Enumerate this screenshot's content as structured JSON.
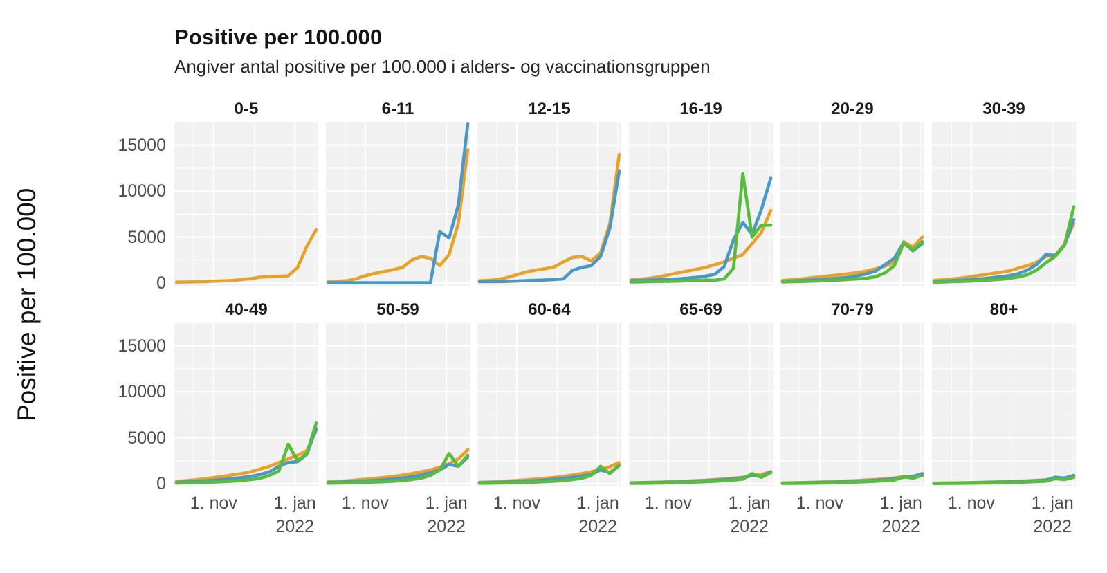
{
  "header": {
    "title": "Positive per 100.000",
    "subtitle": "Angiver antal positive per 100.000 i alders- og vaccinationsgruppen"
  },
  "y_axis_label": "Positive per 100.000",
  "chart_data": {
    "type": "line",
    "title": "Positive per 100.000",
    "subtitle": "Angiver antal positive per 100.000 i alders- og vaccinationsgruppen",
    "ylabel": "Positive per 100.000",
    "xlabel": "",
    "x_description": "weekly observations, index 0-15 (early October 2021 to mid January 2022)",
    "facet_layout": {
      "rows": 2,
      "cols": 6,
      "legend": "none",
      "grid": true
    },
    "panel_bg": "#f1f1f1",
    "grid_color": "#ffffff",
    "ylim": [
      0,
      17500
    ],
    "yticks": [
      0,
      5000,
      10000,
      15000
    ],
    "xticks": [
      {
        "lines": [
          "1. nov"
        ],
        "index": 4
      },
      {
        "lines": [
          "1. jan",
          "2022"
        ],
        "index": 12.71
      }
    ],
    "xminor": [
      1.86,
      8.36,
      14.86
    ],
    "yminor": [
      2500,
      7500,
      12500,
      17500
    ],
    "series_colors": {
      "orange": "#e8a229",
      "blue": "#4a98c8",
      "green": "#57bd3a"
    },
    "panels": [
      {
        "title": "0-5",
        "series": [
          {
            "name": "orange",
            "values": [
              100,
              110,
              130,
              150,
              200,
              240,
              280,
              380,
              480,
              650,
              700,
              720,
              800,
              1700,
              4000,
              5800
            ]
          }
        ]
      },
      {
        "title": "6-11",
        "series": [
          {
            "name": "orange",
            "values": [
              150,
              180,
              250,
              450,
              800,
              1050,
              1250,
              1450,
              1700,
              2500,
              2900,
              2700,
              1900,
              3100,
              6500,
              14500
            ]
          },
          {
            "name": "blue",
            "values": [
              30,
              30,
              30,
              30,
              30,
              30,
              30,
              30,
              30,
              30,
              30,
              40,
              5600,
              4900,
              8500,
              17300
            ]
          }
        ]
      },
      {
        "title": "12-15",
        "series": [
          {
            "name": "orange",
            "values": [
              250,
              300,
              400,
              600,
              900,
              1200,
              1400,
              1550,
              1750,
              2300,
              2800,
              2900,
              2400,
              3300,
              6500,
              14000
            ]
          },
          {
            "name": "blue",
            "values": [
              150,
              150,
              160,
              180,
              220,
              260,
              300,
              330,
              380,
              450,
              1400,
              1700,
              1900,
              2900,
              6000,
              12200
            ]
          }
        ]
      },
      {
        "title": "16-19",
        "series": [
          {
            "name": "orange",
            "values": [
              350,
              420,
              520,
              680,
              880,
              1100,
              1300,
              1500,
              1700,
              2000,
              2300,
              2700,
              3100,
              4300,
              5500,
              7900
            ]
          },
          {
            "name": "blue",
            "values": [
              250,
              280,
              320,
              360,
              400,
              450,
              520,
              620,
              750,
              950,
              1800,
              4700,
              6600,
              5300,
              8000,
              11400
            ]
          },
          {
            "name": "green",
            "values": [
              120,
              130,
              150,
              170,
              190,
              210,
              240,
              270,
              320,
              300,
              450,
              1600,
              11900,
              5000,
              6300,
              6300
            ]
          }
        ]
      },
      {
        "title": "20-29",
        "series": [
          {
            "name": "orange",
            "values": [
              280,
              360,
              450,
              560,
              670,
              780,
              890,
              1000,
              1120,
              1300,
              1550,
              1850,
              2250,
              4500,
              3900,
              5000
            ]
          },
          {
            "name": "blue",
            "values": [
              180,
              220,
              270,
              320,
              380,
              440,
              520,
              620,
              780,
              1000,
              1300,
              2000,
              2700,
              4400,
              3500,
              4300
            ]
          },
          {
            "name": "green",
            "values": [
              120,
              140,
              170,
              200,
              240,
              280,
              330,
              390,
              450,
              520,
              700,
              1100,
              1900,
              4300,
              3600,
              4500
            ]
          }
        ]
      },
      {
        "title": "30-39",
        "series": [
          {
            "name": "orange",
            "values": [
              280,
              360,
              450,
              560,
              700,
              850,
              1000,
              1150,
              1300,
              1600,
              1900,
              2250,
              2900,
              3000,
              4200,
              6500
            ]
          },
          {
            "name": "blue",
            "values": [
              160,
              200,
              250,
              310,
              370,
              450,
              550,
              660,
              800,
              1000,
              1400,
              2000,
              3100,
              3000,
              4100,
              6900
            ]
          },
          {
            "name": "green",
            "values": [
              100,
              120,
              150,
              180,
              220,
              270,
              330,
              400,
              500,
              650,
              900,
              1400,
              2200,
              2900,
              4100,
              8300
            ]
          }
        ]
      },
      {
        "title": "40-49",
        "series": [
          {
            "name": "orange",
            "values": [
              250,
              320,
              420,
              520,
              660,
              800,
              950,
              1100,
              1300,
              1600,
              1900,
              2300,
              2700,
              3100,
              3600,
              5800
            ]
          },
          {
            "name": "blue",
            "values": [
              150,
              200,
              250,
              310,
              380,
              460,
              550,
              660,
              800,
              1000,
              1300,
              1900,
              2300,
              2400,
              3200,
              6000
            ]
          },
          {
            "name": "green",
            "values": [
              80,
              100,
              120,
              150,
              180,
              220,
              280,
              350,
              450,
              600,
              900,
              1400,
              4300,
              2500,
              3300,
              6600
            ]
          }
        ]
      },
      {
        "title": "50-59",
        "series": [
          {
            "name": "orange",
            "values": [
              200,
              250,
              310,
              400,
              490,
              580,
              680,
              790,
              930,
              1100,
              1300,
              1500,
              1800,
              2200,
              2700,
              3700
            ]
          },
          {
            "name": "blue",
            "values": [
              130,
              160,
              200,
              250,
              300,
              360,
              430,
              510,
              610,
              750,
              950,
              1200,
              1500,
              2100,
              1900,
              2900
            ]
          },
          {
            "name": "green",
            "values": [
              60,
              80,
              100,
              120,
              150,
              180,
              220,
              280,
              350,
              450,
              600,
              900,
              1500,
              3300,
              1900,
              3100
            ]
          }
        ]
      },
      {
        "title": "60-64",
        "series": [
          {
            "name": "orange",
            "values": [
              150,
              180,
              220,
              280,
              350,
              420,
              500,
              580,
              680,
              800,
              950,
              1100,
              1300,
              1550,
              1850,
              2300
            ]
          },
          {
            "name": "blue",
            "values": [
              100,
              120,
              150,
              185,
              225,
              270,
              330,
              400,
              480,
              580,
              700,
              850,
              1000,
              1500,
              1200,
              2000
            ]
          },
          {
            "name": "green",
            "values": [
              50,
              60,
              80,
              100,
              120,
              150,
              180,
              220,
              280,
              350,
              450,
              600,
              900,
              1900,
              1100,
              2000
            ]
          }
        ]
      },
      {
        "title": "65-69",
        "series": [
          {
            "name": "orange",
            "values": [
              100,
              120,
              140,
              170,
              200,
              240,
              280,
              330,
              380,
              450,
              520,
              600,
              700,
              900,
              1000,
              1300
            ]
          },
          {
            "name": "blue",
            "values": [
              80,
              95,
              110,
              130,
              160,
              190,
              230,
              270,
              320,
              380,
              450,
              530,
              620,
              900,
              800,
              1300
            ]
          },
          {
            "name": "green",
            "values": [
              40,
              50,
              60,
              80,
              100,
              120,
              150,
              180,
              220,
              270,
              330,
              400,
              500,
              1100,
              700,
              1200
            ]
          }
        ]
      },
      {
        "title": "70-79",
        "series": [
          {
            "name": "orange",
            "values": [
              80,
              100,
              120,
              150,
              180,
              210,
              250,
              290,
              340,
              400,
              460,
              530,
              620,
              800,
              700,
              900
            ]
          },
          {
            "name": "blue",
            "values": [
              60,
              75,
              90,
              110,
              130,
              160,
              190,
              230,
              270,
              320,
              380,
              450,
              520,
              700,
              800,
              1100
            ]
          },
          {
            "name": "green",
            "values": [
              30,
              40,
              50,
              60,
              80,
              100,
              120,
              150,
              180,
              220,
              270,
              330,
              400,
              750,
              600,
              900
            ]
          }
        ]
      },
      {
        "title": "80+",
        "series": [
          {
            "name": "orange",
            "values": [
              60,
              70,
              85,
              100,
              120,
              140,
              170,
              200,
              230,
              270,
              310,
              360,
              420,
              600,
              500,
              700
            ]
          },
          {
            "name": "blue",
            "values": [
              50,
              60,
              70,
              85,
              100,
              120,
              140,
              165,
              195,
              230,
              270,
              320,
              380,
              700,
              600,
              900
            ]
          },
          {
            "name": "green",
            "values": [
              25,
              30,
              40,
              50,
              60,
              75,
              90,
              110,
              130,
              160,
              190,
              230,
              280,
              550,
              450,
              700
            ]
          }
        ]
      }
    ]
  }
}
